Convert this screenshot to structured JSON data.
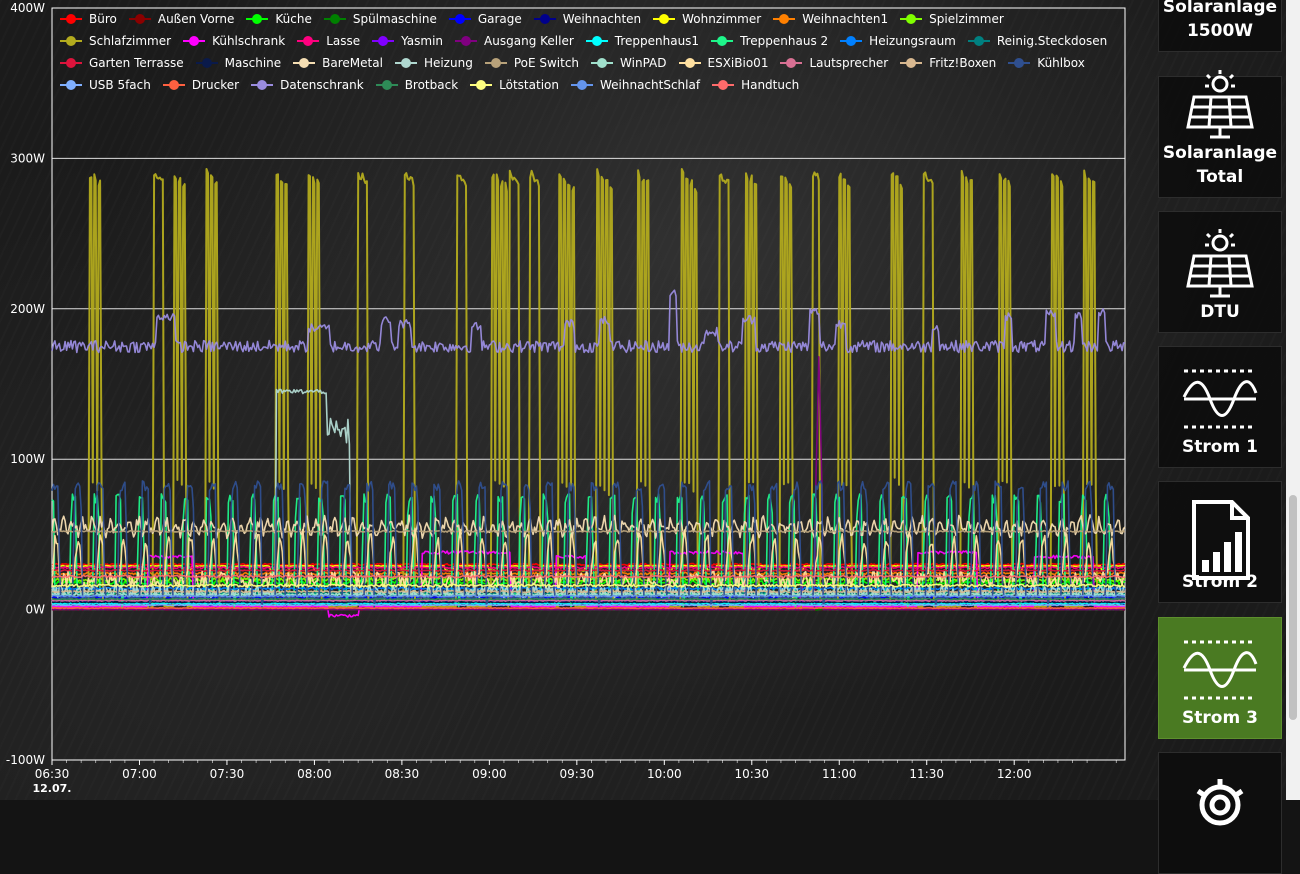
{
  "chart_data": {
    "type": "line",
    "y_ticks": [
      "400W",
      "300W",
      "200W",
      "100W",
      "0W",
      "-100W"
    ],
    "y_tick_values": [
      400,
      300,
      200,
      100,
      0,
      -100
    ],
    "ylim": [
      -100,
      400
    ],
    "x_ticks": [
      "06:30",
      "07:00",
      "07:30",
      "08:00",
      "08:30",
      "09:00",
      "09:30",
      "10:00",
      "10:30",
      "11:00",
      "11:30",
      "12:00"
    ],
    "x_date_label": "12.07.",
    "x_range": [
      "06:30",
      "12:38"
    ],
    "grid": "horizontal",
    "legend_position": "top",
    "series": [
      {
        "name": "Büro",
        "color": "#ff0000",
        "style": "flat",
        "base": 30,
        "noise": 0.6
      },
      {
        "name": "Außen Vorne",
        "color": "#8b0000",
        "style": "flat",
        "base": 0,
        "noise": 0.3
      },
      {
        "name": "Küche",
        "color": "#00ff00",
        "style": "flat",
        "base": 18,
        "noise": 1.2
      },
      {
        "name": "Spülmaschine",
        "color": "#008000",
        "style": "flat",
        "base": 0,
        "noise": 0.3
      },
      {
        "name": "Garage",
        "color": "#0000ff",
        "style": "flat",
        "base": 8,
        "noise": 0.6
      },
      {
        "name": "Weihnachten",
        "color": "#00008b",
        "style": "flat",
        "base": 3,
        "noise": 0.4
      },
      {
        "name": "Wohnzimmer",
        "color": "#ffff00",
        "style": "steps",
        "base": 29,
        "alt": 26,
        "period": 3,
        "noise": 0.5
      },
      {
        "name": "Weihnachten1",
        "color": "#ff8000",
        "style": "flat",
        "base": 24,
        "noise": 0.8
      },
      {
        "name": "Spielzimmer",
        "color": "#80ff00",
        "style": "flat",
        "base": 20,
        "noise": 1.2
      },
      {
        "name": "Schlafzimmer",
        "color": "#b3ab1e",
        "style": "spikes",
        "base": 2,
        "peak": 290,
        "spikes": [
          [
            "06:43",
            4
          ],
          [
            "07:05",
            3
          ],
          [
            "07:12",
            4
          ],
          [
            "07:23",
            4
          ],
          [
            "07:47",
            4
          ],
          [
            "07:58",
            4
          ],
          [
            "08:15",
            3
          ],
          [
            "08:31",
            3
          ],
          [
            "08:49",
            3
          ],
          [
            "09:01",
            5
          ],
          [
            "09:07",
            3
          ],
          [
            "09:14",
            3
          ],
          [
            "09:24",
            5
          ],
          [
            "09:37",
            5
          ],
          [
            "09:51",
            4
          ],
          [
            "10:06",
            5
          ],
          [
            "10:19",
            3
          ],
          [
            "10:28",
            4
          ],
          [
            "10:40",
            4
          ],
          [
            "10:51",
            2
          ],
          [
            "11:00",
            4
          ],
          [
            "11:18",
            4
          ],
          [
            "11:29",
            3
          ],
          [
            "11:42",
            4
          ],
          [
            "11:55",
            4
          ],
          [
            "12:13",
            4
          ],
          [
            "12:24",
            4
          ]
        ]
      },
      {
        "name": "Kühlschrank",
        "color": "#ff00ff",
        "style": "mixed",
        "base": 2,
        "noise": 0.5,
        "pulses": [
          [
            "07:03",
            15,
            35
          ],
          [
            "08:05",
            10,
            -4
          ],
          [
            "08:37",
            30,
            38
          ],
          [
            "09:23",
            10,
            35
          ],
          [
            "10:02",
            25,
            38
          ],
          [
            "10:47",
            0,
            20
          ],
          [
            "11:27",
            20,
            38
          ],
          [
            "12:07",
            20,
            35
          ]
        ]
      },
      {
        "name": "Lasse",
        "color": "#ff007f",
        "style": "flat",
        "base": 28,
        "noise": 0.6
      },
      {
        "name": "Yasmin",
        "color": "#8000ff",
        "style": "flat",
        "base": 6,
        "noise": 0.5
      },
      {
        "name": "Ausgang Keller",
        "color": "#800080",
        "style": "single_spike",
        "base": 0,
        "at": "10:52",
        "width": 2,
        "peak": 170
      },
      {
        "name": "Treppenhaus1",
        "color": "#00ffff",
        "style": "flat",
        "base": 4,
        "noise": 0.4
      },
      {
        "name": "Treppenhaus 2",
        "color": "#1ef58a",
        "style": "cycle",
        "base": 10,
        "peak": 75,
        "period": 7.7,
        "width": 2.4,
        "offset": 1.5
      },
      {
        "name": "Heizungsraum",
        "color": "#0080ff",
        "style": "flat",
        "base": 14,
        "noise": 0.8
      },
      {
        "name": "Reinig.Steckdosen",
        "color": "#008080",
        "style": "flat",
        "base": 11,
        "noise": 0.6
      },
      {
        "name": "Garten Terrasse",
        "color": "#dc143c",
        "style": "flat",
        "base": 26,
        "noise": 0.5
      },
      {
        "name": "Maschine",
        "color": "#0a1a4a",
        "style": "flat",
        "base": 5,
        "noise": 0.4
      },
      {
        "name": "BareMetal",
        "color": "#f5deb3",
        "style": "noise",
        "base": 55,
        "amp": 8,
        "period": 3.2
      },
      {
        "name": "Heizung",
        "color": "#b0d8d0",
        "style": "plateau",
        "base": 12,
        "peak": 145,
        "start": "07:47",
        "end": "08:04",
        "tail_end": "08:12",
        "tail": 117
      },
      {
        "name": "PoE Switch",
        "color": "#b8a27a",
        "style": "flat",
        "base": 52,
        "noise": 0.5
      },
      {
        "name": "WinPAD",
        "color": "#a0e0cc",
        "style": "flat",
        "base": 10,
        "noise": 0.8
      },
      {
        "name": "ESXiBio01",
        "color": "#ffe0a0",
        "style": "noise2",
        "base": 20,
        "amp": 18,
        "period": 7.7
      },
      {
        "name": "Lautsprecher",
        "color": "#d87093",
        "style": "flat",
        "base": 6,
        "noise": 0.4
      },
      {
        "name": "Fritz!Boxen",
        "color": "#d8b890",
        "style": "flat",
        "base": 12,
        "noise": 0.6
      },
      {
        "name": "Kühlbox",
        "color": "#2f4f8f",
        "style": "cycle",
        "base": 8,
        "peak": 84,
        "period": 7.7,
        "width": 3.2,
        "offset": 0.5
      },
      {
        "name": "USB 5fach",
        "color": "#80b0ff",
        "style": "flat",
        "base": 3,
        "noise": 0.3
      },
      {
        "name": "Drucker",
        "color": "#ff6040",
        "style": "flat",
        "base": 1,
        "noise": 0.2
      },
      {
        "name": "Datenschrank",
        "color": "#9a8cdf",
        "style": "datenschrank",
        "base": 175,
        "noise": 4,
        "bumps": [
          [
            "07:06",
            6,
            195
          ],
          [
            "07:58",
            7,
            187
          ],
          [
            "08:23",
            3,
            192
          ],
          [
            "08:29",
            4,
            190
          ],
          [
            "08:54",
            3,
            188
          ],
          [
            "09:26",
            3,
            190
          ],
          [
            "09:38",
            3,
            192
          ],
          [
            "10:02",
            2,
            210
          ],
          [
            "10:14",
            4,
            185
          ],
          [
            "10:27",
            4,
            193
          ],
          [
            "10:50",
            3,
            198
          ],
          [
            "10:59",
            3,
            190
          ],
          [
            "11:32",
            2,
            188
          ],
          [
            "11:57",
            2,
            195
          ],
          [
            "12:11",
            3,
            196
          ],
          [
            "12:21",
            2,
            196
          ],
          [
            "12:29",
            2,
            198
          ]
        ]
      },
      {
        "name": "Brotback",
        "color": "#2e8b57",
        "style": "flat",
        "base": 7,
        "noise": 0.4
      },
      {
        "name": "Lötstation",
        "color": "#ffff80",
        "style": "flat",
        "base": 16,
        "noise": 0.8
      },
      {
        "name": "WeihnachtSchlaf",
        "color": "#6495ed",
        "style": "flat",
        "base": 9,
        "noise": 0.5
      },
      {
        "name": "Handtuch",
        "color": "#ff6b6b",
        "style": "flat",
        "base": 22,
        "noise": 0.8
      }
    ]
  },
  "sidebar": {
    "items": [
      {
        "label_line1": "Solaranlage",
        "label_line2": "1500W",
        "icon": "solar-panel-icon",
        "active": false
      },
      {
        "label_line1": "Solaranlage",
        "label_line2": "Total",
        "icon": "solar-panel-icon",
        "active": false
      },
      {
        "label_line1": "DTU",
        "label_line2": "",
        "icon": "solar-panel-icon",
        "active": false
      },
      {
        "label_line1": "Strom 1",
        "label_line2": "",
        "icon": "wave-icon",
        "active": false
      },
      {
        "label_line1": "Strom 2",
        "label_line2": "",
        "icon": "document-chart-icon",
        "active": false
      },
      {
        "label_line1": "Strom 3",
        "label_line2": "",
        "icon": "wave-icon",
        "active": true
      },
      {
        "label_line1": "",
        "label_line2": "",
        "icon": "settings-gear-icon",
        "active": false
      }
    ]
  },
  "colors": {
    "active_tile": "#4a7a22",
    "grid": "#ffffff",
    "text": "#ffffff"
  }
}
